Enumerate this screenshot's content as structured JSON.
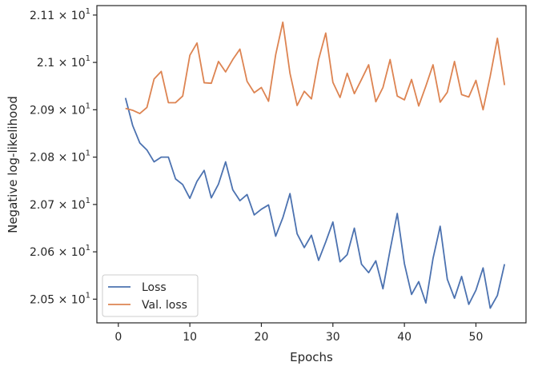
{
  "chart_data": {
    "type": "line",
    "xlabel": "Epochs",
    "ylabel": "Negative log-likelihood",
    "xlim": [
      -3,
      57
    ],
    "ylim": [
      20.45,
      21.12
    ],
    "x_ticks": [
      0,
      10,
      20,
      30,
      40,
      50
    ],
    "x_tick_labels": [
      "0",
      "10",
      "20",
      "30",
      "40",
      "50"
    ],
    "y_ticks": [
      20.5,
      20.6,
      20.7,
      20.8,
      20.9,
      21.0,
      21.1
    ],
    "y_tick_labels": [
      {
        "mantissa": "2.05",
        "base": "10",
        "exp": "1"
      },
      {
        "mantissa": "2.06",
        "base": "10",
        "exp": "1"
      },
      {
        "mantissa": "2.07",
        "base": "10",
        "exp": "1"
      },
      {
        "mantissa": "2.08",
        "base": "10",
        "exp": "1"
      },
      {
        "mantissa": "2.09",
        "base": "10",
        "exp": "1"
      },
      {
        "mantissa": "2.1",
        "base": "10",
        "exp": "1"
      },
      {
        "mantissa": "2.11",
        "base": "10",
        "exp": "1"
      }
    ],
    "grid": false,
    "legend_position": "lower-left",
    "x": [
      1,
      2,
      3,
      4,
      5,
      6,
      7,
      8,
      9,
      10,
      11,
      12,
      13,
      14,
      15,
      16,
      17,
      18,
      19,
      20,
      21,
      22,
      23,
      24,
      25,
      26,
      27,
      28,
      29,
      30,
      31,
      32,
      33,
      34,
      35,
      36,
      37,
      38,
      39,
      40,
      41,
      42,
      43,
      44,
      45,
      46,
      47,
      48,
      49,
      50,
      51,
      52,
      53,
      54
    ],
    "series": [
      {
        "name": "Loss",
        "color": "#4c72b0",
        "values": [
          20.925,
          20.867,
          20.83,
          20.815,
          20.79,
          20.8,
          20.8,
          20.754,
          20.742,
          20.713,
          20.749,
          20.772,
          20.714,
          20.743,
          20.79,
          20.731,
          20.708,
          20.721,
          20.678,
          20.69,
          20.699,
          20.633,
          20.672,
          20.723,
          20.638,
          20.609,
          20.635,
          20.582,
          20.621,
          20.663,
          20.579,
          20.594,
          20.65,
          20.574,
          20.556,
          20.581,
          20.522,
          20.604,
          20.681,
          20.575,
          20.51,
          20.537,
          20.492,
          20.586,
          20.654,
          20.542,
          20.502,
          20.548,
          20.489,
          20.519,
          20.566,
          20.481,
          20.508,
          20.574
        ]
      },
      {
        "name": "Val. loss",
        "color": "#dd8452",
        "values": [
          20.903,
          20.899,
          20.892,
          20.905,
          20.965,
          20.981,
          20.915,
          20.915,
          20.929,
          21.015,
          21.041,
          20.957,
          20.956,
          21.002,
          20.98,
          21.006,
          21.028,
          20.96,
          20.936,
          20.947,
          20.918,
          21.016,
          21.085,
          20.977,
          20.909,
          20.939,
          20.923,
          21.006,
          21.062,
          20.958,
          20.926,
          20.977,
          20.934,
          20.964,
          20.995,
          20.917,
          20.947,
          21.006,
          20.929,
          20.921,
          20.964,
          20.908,
          20.95,
          20.995,
          20.916,
          20.937,
          21.002,
          20.932,
          20.927,
          20.962,
          20.9,
          20.971,
          21.051,
          20.952
        ]
      }
    ]
  }
}
